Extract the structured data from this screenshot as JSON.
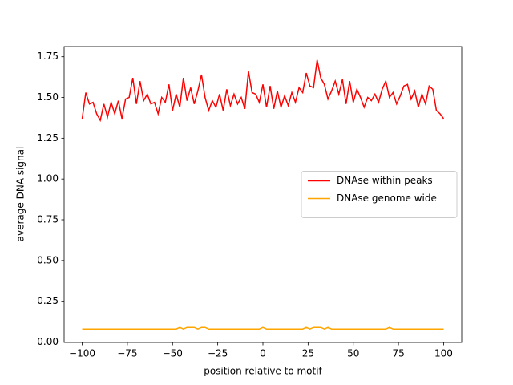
{
  "chart_data": {
    "type": "line",
    "xlabel": "position relative to motif",
    "ylabel": "average DNA signal",
    "x": [
      -100,
      -98,
      -96,
      -94,
      -92,
      -90,
      -88,
      -86,
      -84,
      -82,
      -80,
      -78,
      -76,
      -74,
      -72,
      -70,
      -68,
      -66,
      -64,
      -62,
      -60,
      -58,
      -56,
      -54,
      -52,
      -50,
      -48,
      -46,
      -44,
      -42,
      -40,
      -38,
      -36,
      -34,
      -32,
      -30,
      -28,
      -26,
      -24,
      -22,
      -20,
      -18,
      -16,
      -14,
      -12,
      -10,
      -8,
      -6,
      -4,
      -2,
      0,
      2,
      4,
      6,
      8,
      10,
      12,
      14,
      16,
      18,
      20,
      22,
      24,
      26,
      28,
      30,
      32,
      34,
      36,
      38,
      40,
      42,
      44,
      46,
      48,
      50,
      52,
      54,
      56,
      58,
      60,
      62,
      64,
      66,
      68,
      70,
      72,
      74,
      76,
      78,
      80,
      82,
      84,
      86,
      88,
      90,
      92,
      94,
      96,
      98,
      100
    ],
    "series": [
      {
        "name": "DNAse within peaks",
        "color": "#ff0000",
        "values": [
          1.37,
          1.53,
          1.46,
          1.47,
          1.4,
          1.36,
          1.46,
          1.38,
          1.47,
          1.4,
          1.48,
          1.37,
          1.49,
          1.5,
          1.62,
          1.46,
          1.6,
          1.48,
          1.52,
          1.46,
          1.47,
          1.4,
          1.5,
          1.47,
          1.58,
          1.42,
          1.52,
          1.44,
          1.62,
          1.48,
          1.56,
          1.46,
          1.54,
          1.64,
          1.5,
          1.42,
          1.48,
          1.44,
          1.52,
          1.42,
          1.55,
          1.45,
          1.52,
          1.46,
          1.5,
          1.43,
          1.66,
          1.53,
          1.52,
          1.47,
          1.58,
          1.44,
          1.57,
          1.43,
          1.54,
          1.44,
          1.51,
          1.45,
          1.53,
          1.47,
          1.56,
          1.53,
          1.65,
          1.57,
          1.56,
          1.73,
          1.62,
          1.58,
          1.49,
          1.54,
          1.6,
          1.52,
          1.61,
          1.46,
          1.6,
          1.47,
          1.55,
          1.5,
          1.44,
          1.5,
          1.48,
          1.52,
          1.47,
          1.55,
          1.6,
          1.5,
          1.53,
          1.46,
          1.51,
          1.57,
          1.58,
          1.49,
          1.54,
          1.44,
          1.52,
          1.46,
          1.57,
          1.55,
          1.42,
          1.4,
          1.37
        ]
      },
      {
        "name": "DNAse genome wide",
        "color": "#ffa500",
        "values": [
          0.08,
          0.08,
          0.08,
          0.08,
          0.08,
          0.08,
          0.08,
          0.08,
          0.08,
          0.08,
          0.08,
          0.08,
          0.08,
          0.08,
          0.08,
          0.08,
          0.08,
          0.08,
          0.08,
          0.08,
          0.08,
          0.08,
          0.08,
          0.08,
          0.08,
          0.08,
          0.08,
          0.09,
          0.08,
          0.09,
          0.09,
          0.09,
          0.08,
          0.09,
          0.09,
          0.08,
          0.08,
          0.08,
          0.08,
          0.08,
          0.08,
          0.08,
          0.08,
          0.08,
          0.08,
          0.08,
          0.08,
          0.08,
          0.08,
          0.08,
          0.09,
          0.08,
          0.08,
          0.08,
          0.08,
          0.08,
          0.08,
          0.08,
          0.08,
          0.08,
          0.08,
          0.08,
          0.09,
          0.08,
          0.09,
          0.09,
          0.09,
          0.08,
          0.09,
          0.08,
          0.08,
          0.08,
          0.08,
          0.08,
          0.08,
          0.08,
          0.08,
          0.08,
          0.08,
          0.08,
          0.08,
          0.08,
          0.08,
          0.08,
          0.08,
          0.09,
          0.08,
          0.08,
          0.08,
          0.08,
          0.08,
          0.08,
          0.08,
          0.08,
          0.08,
          0.08,
          0.08,
          0.08,
          0.08,
          0.08,
          0.08
        ]
      }
    ],
    "xlim": [
      -110,
      110
    ],
    "xticks": [
      {
        "value": -100,
        "label": "−100"
      },
      {
        "value": -75,
        "label": "−75"
      },
      {
        "value": -50,
        "label": "−50"
      },
      {
        "value": -25,
        "label": "−25"
      },
      0,
      25,
      50,
      75,
      100
    ],
    "ylim": [
      -0.0025,
      1.8125
    ],
    "yticks": [
      {
        "value": 0,
        "label": "0.00"
      },
      {
        "value": 0.25,
        "label": "0.25"
      },
      {
        "value": 0.5,
        "label": "0.50"
      },
      {
        "value": 0.75,
        "label": "0.75"
      },
      {
        "value": 1,
        "label": "1.00"
      },
      {
        "value": 1.25,
        "label": "1.25"
      },
      {
        "value": 1.5,
        "label": "1.50"
      },
      {
        "value": 1.75,
        "label": "1.75"
      }
    ],
    "legend": "center right"
  }
}
